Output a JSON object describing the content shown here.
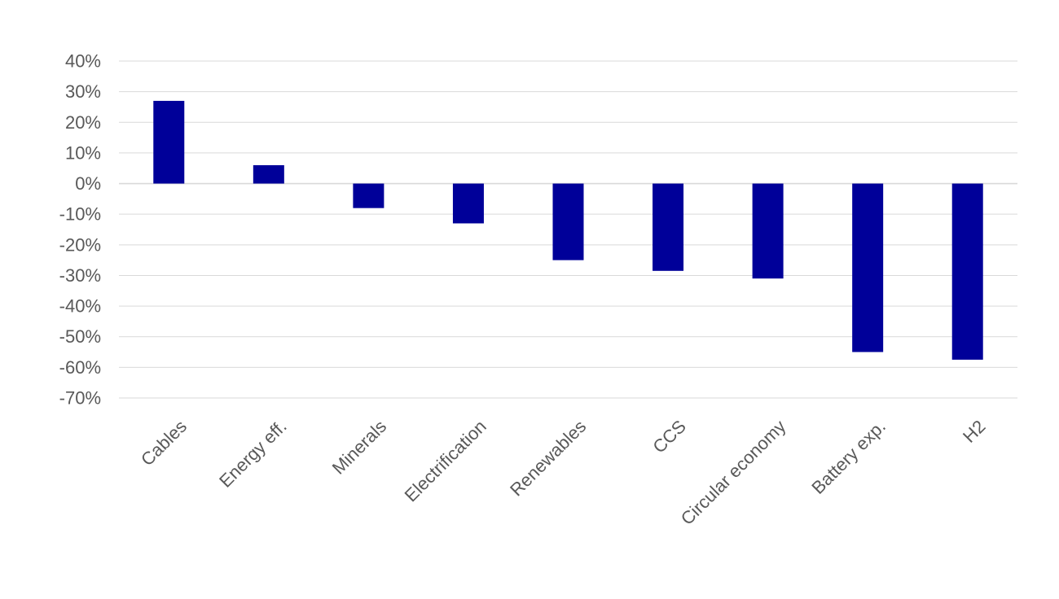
{
  "chart_data": {
    "type": "bar",
    "title": "",
    "xlabel": "",
    "ylabel": "",
    "categories": [
      "Cables",
      "Energy eff.",
      "Minerals",
      "Electrification",
      "Renewables",
      "CCS",
      "Circular economy",
      "Battery exp.",
      "H2"
    ],
    "values": [
      27,
      6,
      -8,
      -13,
      -25,
      -28.5,
      -31,
      -55,
      -57.5
    ],
    "y_ticks": [
      "40%",
      "30%",
      "20%",
      "10%",
      "0%",
      "-10%",
      "-20%",
      "-30%",
      "-40%",
      "-50%",
      "-60%",
      "-70%"
    ],
    "ylim": [
      -70,
      40
    ],
    "grid": true,
    "legend": "none",
    "colors": {
      "bar": "#000099",
      "grid": "#d9d9d9",
      "tick_text": "#595959"
    }
  }
}
